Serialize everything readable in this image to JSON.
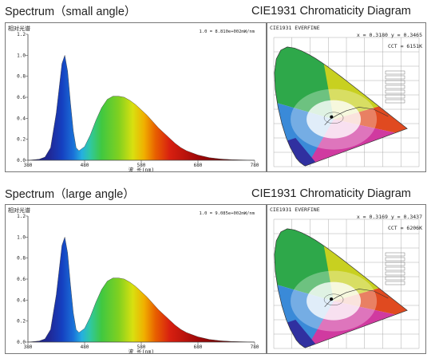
{
  "chart_data": [
    {
      "type": "area",
      "panel_title": "Spectrum（small angle）",
      "ylabel": "相对光谱",
      "xlabel": "波 长(nm)",
      "peak_label": "1.0 = 8.810e+002mW/nm",
      "xlim": [
        380,
        780
      ],
      "ylim": [
        0,
        1.2
      ],
      "xticks": [
        "380",
        "480",
        "580",
        "680",
        "780"
      ],
      "yticks": [
        "0.0",
        "0.2",
        "0.4",
        "0.6",
        "0.8",
        "1.0",
        "1.2"
      ],
      "x": [
        380,
        400,
        410,
        420,
        430,
        440,
        445,
        450,
        455,
        460,
        465,
        470,
        480,
        490,
        500,
        510,
        520,
        530,
        540,
        550,
        560,
        570,
        580,
        590,
        600,
        610,
        620,
        630,
        640,
        650,
        660,
        680,
        700,
        720,
        740,
        760,
        780
      ],
      "y": [
        0.0,
        0.01,
        0.03,
        0.12,
        0.45,
        0.92,
        1.0,
        0.85,
        0.55,
        0.28,
        0.12,
        0.09,
        0.13,
        0.24,
        0.38,
        0.5,
        0.58,
        0.61,
        0.61,
        0.6,
        0.57,
        0.53,
        0.48,
        0.43,
        0.37,
        0.31,
        0.26,
        0.21,
        0.16,
        0.12,
        0.09,
        0.05,
        0.025,
        0.012,
        0.006,
        0.003,
        0.0
      ]
    },
    {
      "type": "scatter",
      "panel_title": "CIE1931 Chromaticity Diagram",
      "header": "CIE1931  EVERFINE",
      "coord_label": "x = 0.3180  y = 0.3465",
      "cct_label": "CCT = 6151K",
      "x": [
        0.318
      ],
      "y": [
        0.3465
      ],
      "xlim": [
        0,
        0.8
      ],
      "ylim": [
        0,
        0.9
      ]
    },
    {
      "type": "area",
      "panel_title": "Spectrum（large angle）",
      "ylabel": "相对光谱",
      "xlabel": "波 长(nm)",
      "peak_label": "1.0 = 9.085e+002mW/nm",
      "xlim": [
        380,
        780
      ],
      "ylim": [
        0,
        1.2
      ],
      "xticks": [
        "380",
        "480",
        "580",
        "680",
        "780"
      ],
      "yticks": [
        "0.0",
        "0.2",
        "0.4",
        "0.6",
        "0.8",
        "1.0",
        "1.2"
      ],
      "x": [
        380,
        400,
        410,
        420,
        430,
        440,
        445,
        450,
        455,
        460,
        465,
        470,
        480,
        490,
        500,
        510,
        520,
        530,
        540,
        550,
        560,
        570,
        580,
        590,
        600,
        610,
        620,
        630,
        640,
        650,
        660,
        680,
        700,
        720,
        740,
        760,
        780
      ],
      "y": [
        0.0,
        0.01,
        0.03,
        0.12,
        0.45,
        0.92,
        1.0,
        0.85,
        0.55,
        0.28,
        0.12,
        0.09,
        0.13,
        0.24,
        0.38,
        0.5,
        0.58,
        0.61,
        0.61,
        0.6,
        0.57,
        0.53,
        0.48,
        0.43,
        0.37,
        0.31,
        0.26,
        0.21,
        0.16,
        0.12,
        0.09,
        0.05,
        0.025,
        0.012,
        0.006,
        0.003,
        0.0
      ]
    },
    {
      "type": "scatter",
      "panel_title": "CIE1931 Chromaticity Diagram",
      "header": "CIE1931  EVERFINE",
      "coord_label": "x = 0.3169  y = 0.3437",
      "cct_label": "CCT = 6206K",
      "x": [
        0.3169
      ],
      "y": [
        0.3437
      ],
      "xlim": [
        0,
        0.8
      ],
      "ylim": [
        0,
        0.9
      ]
    }
  ]
}
